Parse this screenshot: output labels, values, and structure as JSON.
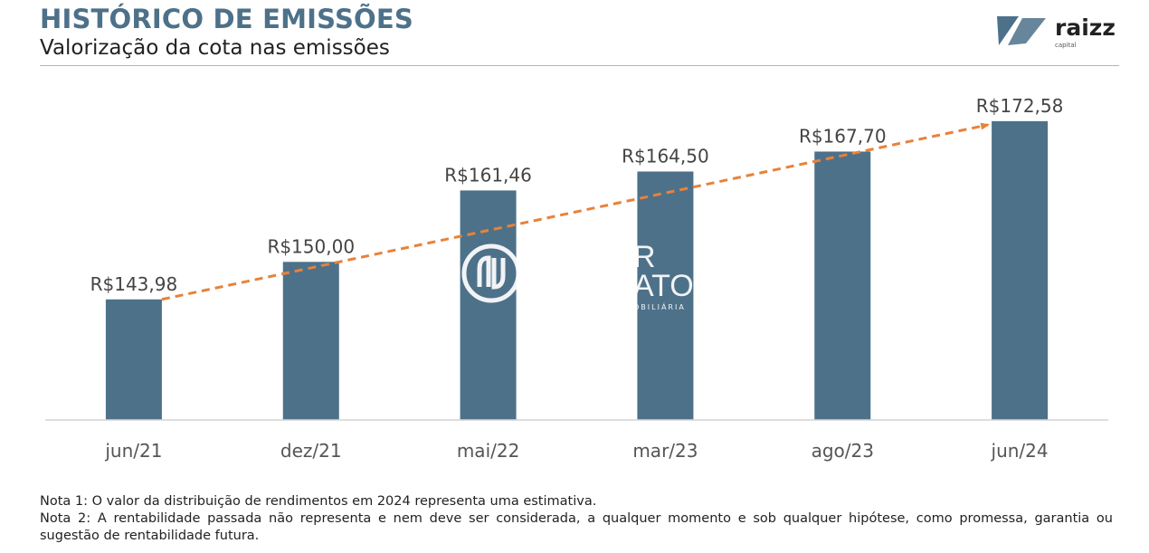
{
  "header": {
    "title": "HISTÓRICO DE EMISSÕES",
    "subtitle": "Valorização da cota nas emissões",
    "logo_text": "raizz",
    "logo_subtext": "capital"
  },
  "watermark": {
    "line1": "R",
    "line2": "ATO",
    "line3": "OBILIÁRIA"
  },
  "colors": {
    "bar": "#4d7189",
    "trend": "#e8823a",
    "title": "#4d7189"
  },
  "chart_data": {
    "type": "bar",
    "categories": [
      "jun/21",
      "dez/21",
      "mai/22",
      "mar/23",
      "ago/23",
      "jun/24"
    ],
    "values": [
      143.98,
      150.0,
      161.46,
      164.5,
      167.7,
      172.58
    ],
    "data_labels": [
      "R$143,98",
      "R$150,00",
      "R$161,46",
      "R$164,50",
      "R$167,70",
      "R$172,58"
    ],
    "ylim": [
      124.63,
      177.5
    ],
    "trend_line": {
      "style": "dashed",
      "arrow": true,
      "from_category": "jun/21",
      "to_category": "jun/24"
    },
    "grid": false,
    "legend": "none"
  },
  "notes": [
    "Nota 1: O valor da distribuição de rendimentos em 2024 representa uma estimativa.",
    "Nota 2: A rentabilidade passada não representa e nem deve ser considerada, a qualquer momento e sob qualquer hipótese, como promessa, garantia ou sugestão de rentabilidade futura."
  ]
}
